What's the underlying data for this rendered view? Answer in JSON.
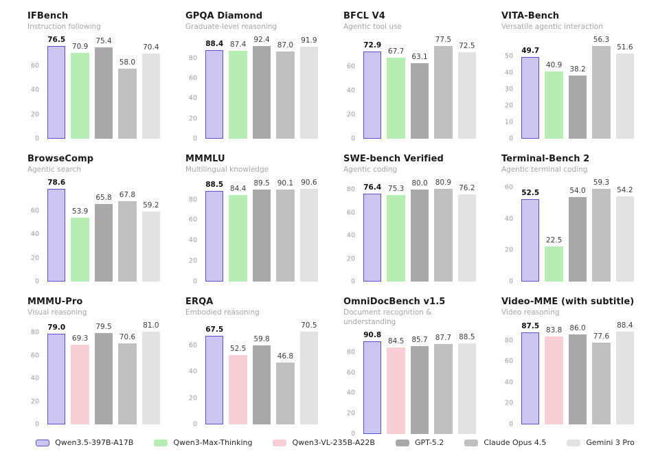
{
  "models": [
    {
      "name": "Qwen3.5-397B-A17B",
      "fill": "#cac6f1",
      "border": "#5a51c9"
    },
    {
      "name": "Qwen3-Max-Thinking",
      "fill": "#b5edb3",
      "border": null
    },
    {
      "name": "Qwen3-VL-235B-A22B",
      "fill": "#f9cfd6",
      "border": null
    },
    {
      "name": "GPT-5.2",
      "fill": "#a8a8a8",
      "border": null
    },
    {
      "name": "Claude Opus 4.5",
      "fill": "#c0c0c0",
      "border": null
    },
    {
      "name": "Gemini 3 Pro",
      "fill": "#e2e2e2",
      "border": null
    }
  ],
  "legend": {
    "items": [
      "Qwen3.5-397B-A17B",
      "Qwen3-Max-Thinking",
      "Qwen3-VL-235B-A22B",
      "GPT-5.2",
      "Claude Opus 4.5",
      "Gemini 3 Pro"
    ]
  },
  "chart_data": [
    {
      "type": "bar",
      "title": "IFBench",
      "subtitle": "Instruction following",
      "categories": [
        "Qwen3.5-397B-A17B",
        "Qwen3-Max-Thinking",
        "GPT-5.2",
        "Claude Opus 4.5",
        "Gemini 3 Pro"
      ],
      "values": [
        76.5,
        70.9,
        75.4,
        58.0,
        70.4
      ],
      "yticks": [
        0,
        20,
        40,
        60
      ],
      "highlight_index": 0,
      "grid": false,
      "ymax_factor": 1.08
    },
    {
      "type": "bar",
      "title": "GPQA Diamond",
      "subtitle": "Graduate-level reasoning",
      "categories": [
        "Qwen3.5-397B-A17B",
        "Qwen3-Max-Thinking",
        "GPT-5.2",
        "Claude Opus 4.5",
        "Gemini 3 Pro"
      ],
      "values": [
        88.4,
        87.4,
        92.4,
        87.0,
        91.9
      ],
      "yticks": [
        0,
        20,
        40,
        60,
        80
      ],
      "highlight_index": 0,
      "grid": false,
      "ymax_factor": 1.08
    },
    {
      "type": "bar",
      "title": "BFCL V4",
      "subtitle": "Agentic tool use",
      "categories": [
        "Qwen3.5-397B-A17B",
        "Qwen3-Max-Thinking",
        "GPT-5.2",
        "Claude Opus 4.5",
        "Gemini 3 Pro"
      ],
      "values": [
        72.9,
        67.7,
        63.1,
        77.5,
        72.5
      ],
      "yticks": [
        0,
        20,
        40,
        60
      ],
      "highlight_index": 0,
      "grid": false,
      "ymax_factor": 1.08
    },
    {
      "type": "bar",
      "title": "VITA-Bench",
      "subtitle": "Versatile agentic interaction",
      "categories": [
        "Qwen3.5-397B-A17B",
        "Qwen3-Max-Thinking",
        "GPT-5.2",
        "Claude Opus 4.5",
        "Gemini 3 Pro"
      ],
      "values": [
        49.7,
        40.9,
        38.2,
        56.3,
        51.6
      ],
      "yticks": [
        0,
        10,
        20,
        30,
        40,
        50
      ],
      "highlight_index": 0,
      "grid": false,
      "ymax_factor": 1.08
    },
    {
      "type": "bar",
      "title": "BrowseComp",
      "subtitle": "Agentic search",
      "categories": [
        "Qwen3.5-397B-A17B",
        "Qwen3-Max-Thinking",
        "GPT-5.2",
        "Claude Opus 4.5",
        "Gemini 3 Pro"
      ],
      "values": [
        78.6,
        53.9,
        65.8,
        67.8,
        59.2
      ],
      "yticks": [
        0,
        20,
        40,
        60
      ],
      "highlight_index": 0,
      "grid": false,
      "ymax_factor": 1.08
    },
    {
      "type": "bar",
      "title": "MMMLU",
      "subtitle": "Multilingual knowledge",
      "categories": [
        "Qwen3.5-397B-A17B",
        "Qwen3-Max-Thinking",
        "GPT-5.2",
        "Claude Opus 4.5",
        "Gemini 3 Pro"
      ],
      "values": [
        88.5,
        84.4,
        89.5,
        90.1,
        90.6
      ],
      "yticks": [
        0,
        20,
        40,
        60,
        80
      ],
      "highlight_index": 0,
      "grid": false,
      "ymax_factor": 1.08
    },
    {
      "type": "bar",
      "title": "SWE-bench Verified",
      "subtitle": "Agentic coding",
      "categories": [
        "Qwen3.5-397B-A17B",
        "Qwen3-Max-Thinking",
        "GPT-5.2",
        "Claude Opus 4.5",
        "Gemini 3 Pro"
      ],
      "values": [
        76.4,
        75.3,
        80.0,
        80.9,
        76.2
      ],
      "yticks": [
        0,
        20,
        40,
        60,
        80
      ],
      "highlight_index": 0,
      "grid": false,
      "ymax_factor": 1.08
    },
    {
      "type": "bar",
      "title": "Terminal-Bench 2",
      "subtitle": "Agentic terminal coding",
      "categories": [
        "Qwen3.5-397B-A17B",
        "Qwen3-Max-Thinking",
        "GPT-5.2",
        "Claude Opus 4.5",
        "Gemini 3 Pro"
      ],
      "values": [
        52.5,
        22.5,
        54.0,
        59.3,
        54.2
      ],
      "yticks": [
        0,
        20,
        40,
        60
      ],
      "highlight_index": 0,
      "grid": false,
      "ymax_factor": 1.08
    },
    {
      "type": "bar",
      "title": "MMMU-Pro",
      "subtitle": "Visual reasoning",
      "categories": [
        "Qwen3.5-397B-A17B",
        "Qwen3-VL-235B-A22B",
        "GPT-5.2",
        "Claude Opus 4.5",
        "Gemini 3 Pro"
      ],
      "values": [
        79.0,
        69.3,
        79.5,
        70.6,
        81.0
      ],
      "yticks": [
        0,
        20,
        40,
        60,
        80
      ],
      "highlight_index": 0,
      "grid": false,
      "ymax_factor": 1.08
    },
    {
      "type": "bar",
      "title": "ERQA",
      "subtitle": "Embodied reasoning",
      "categories": [
        "Qwen3.5-397B-A17B",
        "Qwen3-VL-235B-A22B",
        "GPT-5.2",
        "Claude Opus 4.5",
        "Gemini 3 Pro"
      ],
      "values": [
        67.5,
        52.5,
        59.8,
        46.8,
        70.5
      ],
      "yticks": [
        0,
        20,
        40,
        60
      ],
      "highlight_index": 0,
      "grid": false,
      "ymax_factor": 1.08
    },
    {
      "type": "bar",
      "title": "OmniDocBench v1.5",
      "subtitle": "Document recognition & understanding",
      "categories": [
        "Qwen3.5-397B-A17B",
        "Qwen3-VL-235B-A22B",
        "GPT-5.2",
        "Claude Opus 4.5",
        "Gemini 3 Pro"
      ],
      "values": [
        90.8,
        84.5,
        85.7,
        87.7,
        88.5
      ],
      "yticks": [
        0,
        20,
        40,
        60,
        80
      ],
      "highlight_index": 0,
      "grid": false,
      "ymax_factor": 1.08
    },
    {
      "type": "bar",
      "title": "Video-MME (with subtitle)",
      "subtitle": "Video reasoning",
      "categories": [
        "Qwen3.5-397B-A17B",
        "Qwen3-VL-235B-A22B",
        "GPT-5.2",
        "Claude Opus 4.5",
        "Gemini 3 Pro"
      ],
      "values": [
        87.5,
        83.8,
        86.0,
        77.6,
        88.4
      ],
      "yticks": [
        0,
        20,
        40,
        60,
        80
      ],
      "highlight_index": 0,
      "grid": false,
      "ymax_factor": 1.08
    }
  ]
}
